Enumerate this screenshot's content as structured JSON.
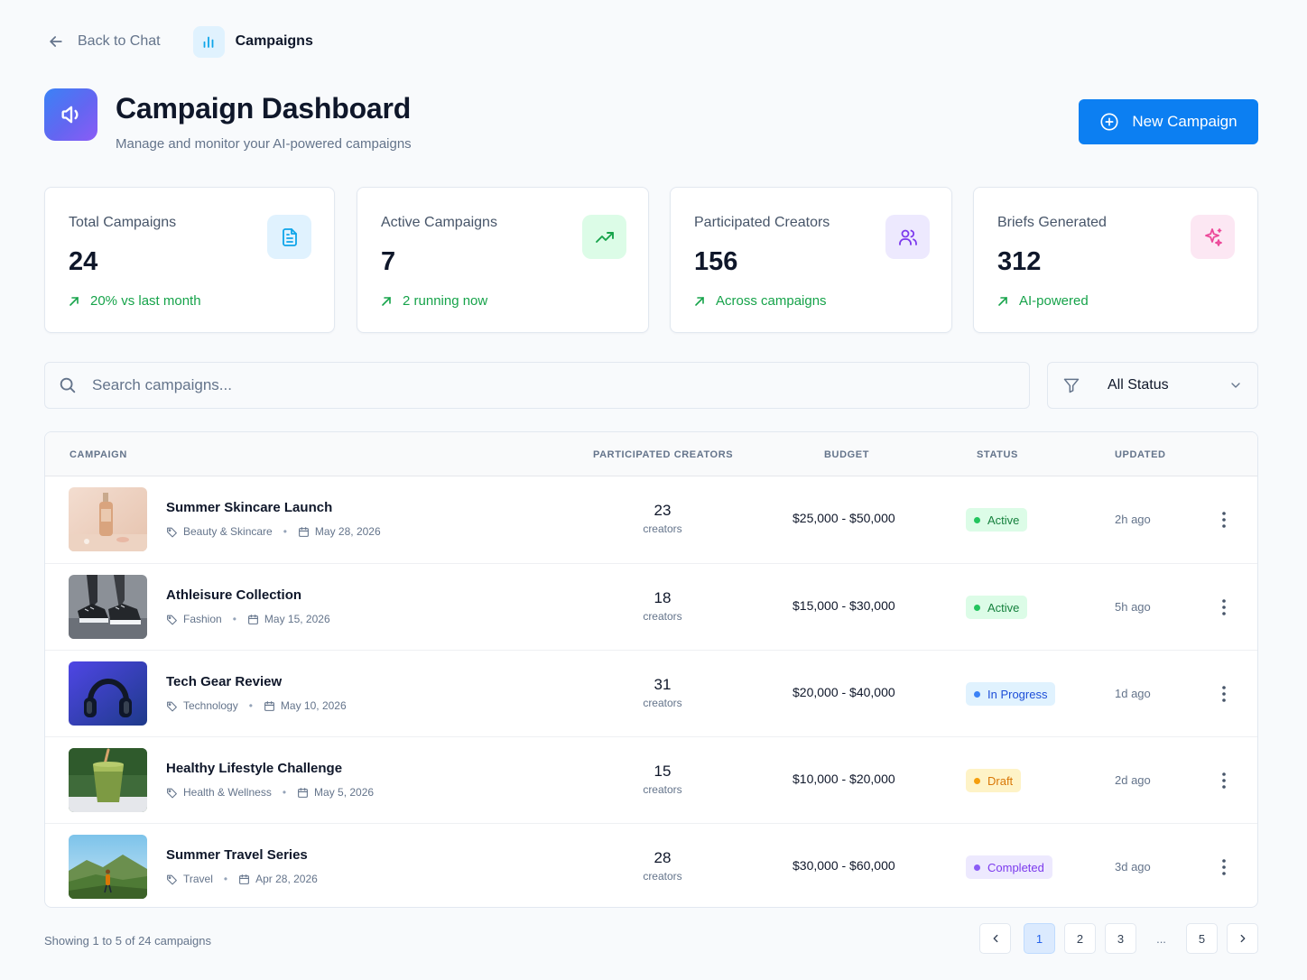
{
  "nav": {
    "back_label": "Back to Chat",
    "crumb_label": "Campaigns"
  },
  "header": {
    "title": "Campaign Dashboard",
    "subtitle": "Manage and monitor your AI-powered campaigns",
    "new_button_label": "New Campaign"
  },
  "colors": {
    "accent": "#0c7ff2",
    "success": "#16a34a",
    "warning": "#f59e0b",
    "purple": "#8b5cf6"
  },
  "stats": [
    {
      "label": "Total Campaigns",
      "value": "24",
      "trend": "20% vs last month",
      "icon": "document-icon"
    },
    {
      "label": "Active Campaigns",
      "value": "7",
      "trend": "2 running now",
      "icon": "trending-up-icon"
    },
    {
      "label": "Participated Creators",
      "value": "156",
      "trend": "Across campaigns",
      "icon": "users-icon"
    },
    {
      "label": "Briefs Generated",
      "value": "312",
      "trend": "AI-powered",
      "icon": "sparkle-icon"
    }
  ],
  "search": {
    "placeholder": "Search campaigns...",
    "value": ""
  },
  "filter": {
    "selected": "All Status"
  },
  "table": {
    "columns": [
      "Campaign",
      "Participated Creators",
      "Budget",
      "Status",
      "Updated"
    ],
    "creators_unit": "creators",
    "rows": [
      {
        "name": "Summer Skincare Launch",
        "category": "Beauty & Skincare",
        "date": "May 28, 2026",
        "creators": "23",
        "budget": "$25,000 - $50,000",
        "status": "Active",
        "updated": "2h ago",
        "thumb": "skincare-bottle"
      },
      {
        "name": "Athleisure Collection",
        "category": "Fashion",
        "date": "May 15, 2026",
        "creators": "18",
        "budget": "$15,000 - $30,000",
        "status": "Active",
        "updated": "5h ago",
        "thumb": "sneakers"
      },
      {
        "name": "Tech Gear Review",
        "category": "Technology",
        "date": "May 10, 2026",
        "creators": "31",
        "budget": "$20,000 - $40,000",
        "status": "In Progress",
        "updated": "1d ago",
        "thumb": "headphones"
      },
      {
        "name": "Healthy Lifestyle Challenge",
        "category": "Health & Wellness",
        "date": "May 5, 2026",
        "creators": "15",
        "budget": "$10,000 - $20,000",
        "status": "Draft",
        "updated": "2d ago",
        "thumb": "smoothie"
      },
      {
        "name": "Summer Travel Series",
        "category": "Travel",
        "date": "Apr 28, 2026",
        "creators": "28",
        "budget": "$30,000 - $60,000",
        "status": "Completed",
        "updated": "3d ago",
        "thumb": "mountain-landscape"
      }
    ]
  },
  "footer": {
    "showing": "Showing 1 to 5 of 24 campaigns",
    "pages": [
      "1",
      "2",
      "3",
      "...",
      "5"
    ],
    "current_page": "1"
  }
}
